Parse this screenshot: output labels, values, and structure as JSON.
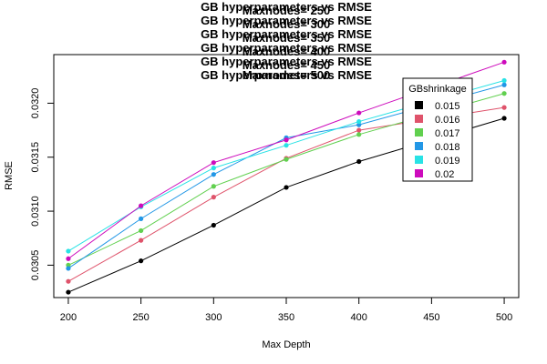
{
  "chart_data": {
    "type": "line",
    "title_lines": [
      "GB hyperparameters vs RMSE",
      "Maxnodes= 250",
      "GB hyperparameters vs RMSE",
      "Maxnodes= 300",
      "GB hyperparameters vs RMSE",
      "Maxnodes= 350",
      "GB hyperparameters vs RMSE",
      "Maxnodes= 400",
      "GB hyperparameters vs RMSE",
      "Maxnodes= 450",
      "GB hyperparameters vs RMSE",
      "Maxnodes= 500"
    ],
    "xlabel": "Max Depth",
    "ylabel": "RMSE",
    "x": [
      200,
      250,
      300,
      350,
      400,
      500
    ],
    "x_ticks": [
      200,
      250,
      300,
      350,
      400,
      450,
      500
    ],
    "y_ticks": [
      0.0305,
      0.031,
      0.0315,
      0.032
    ],
    "y_tick_labels": [
      "0.0305",
      "0.0310",
      "0.0315",
      "0.0320"
    ],
    "xlim": [
      190,
      510
    ],
    "ylim": [
      0.0302,
      0.03245
    ],
    "grid": false,
    "legend": {
      "title": "GBshrinkage",
      "placement": "top-right"
    },
    "series": [
      {
        "name": "0.015",
        "color": "#000000",
        "values": [
          0.03025,
          0.03054,
          0.03087,
          0.03122,
          0.03146,
          0.03186
        ]
      },
      {
        "name": "0.016",
        "color": "#DF536B",
        "values": [
          0.03035,
          0.03073,
          0.03113,
          0.03149,
          0.03175,
          0.03196
        ]
      },
      {
        "name": "0.017",
        "color": "#61D04F",
        "values": [
          0.0305,
          0.03082,
          0.03123,
          0.03148,
          0.03171,
          0.03209
        ]
      },
      {
        "name": "0.018",
        "color": "#2297E6",
        "values": [
          0.03047,
          0.03093,
          0.03134,
          0.03168,
          0.0318,
          0.03217
        ]
      },
      {
        "name": "0.019",
        "color": "#28E2E5",
        "values": [
          0.03063,
          0.03104,
          0.0314,
          0.03161,
          0.03183,
          0.03221
        ]
      },
      {
        "name": "0.02",
        "color": "#CD0BBC",
        "values": [
          0.03056,
          0.03105,
          0.03145,
          0.03166,
          0.03191,
          0.03238
        ]
      }
    ]
  }
}
